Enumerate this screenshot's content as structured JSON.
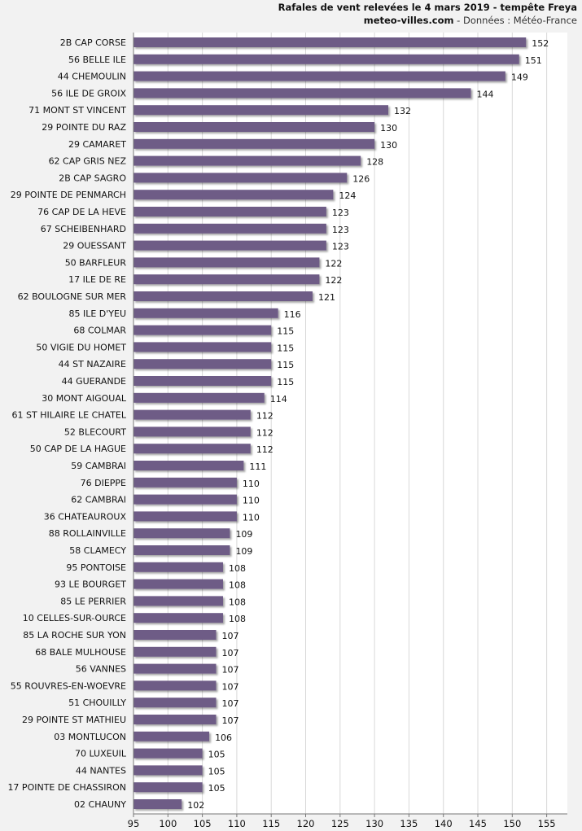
{
  "header": {
    "title": "Rafales de vent relevées le 4 mars 2019  - tempête Freya",
    "site": "meteo-villes.com",
    "source": " - Données : Météo-France"
  },
  "chart_data": {
    "type": "bar",
    "orientation": "horizontal",
    "title": "Rafales de vent relevées le 4 mars 2019  - tempête Freya",
    "xlim": [
      95,
      158
    ],
    "xticks": [
      95,
      100,
      105,
      110,
      115,
      120,
      125,
      130,
      135,
      140,
      145,
      150,
      155
    ],
    "grid": true,
    "bar_color": "#6e5c86",
    "categories": [
      "2B CAP CORSE",
      "56 BELLE ILE",
      "44 CHEMOULIN",
      "56 ILE DE GROIX",
      "71 MONT ST VINCENT",
      "29 POINTE DU RAZ",
      "29 CAMARET",
      "62 CAP GRIS NEZ",
      "2B CAP SAGRO",
      "29 POINTE DE PENMARCH",
      "76 CAP DE LA HEVE",
      "67 SCHEIBENHARD",
      "29 OUESSANT",
      "50 BARFLEUR",
      "17 ILE DE RE",
      "62 BOULOGNE SUR MER",
      "85 ILE D'YEU",
      "68 COLMAR",
      "50 VIGIE DU HOMET",
      "44 ST NAZAIRE",
      "44 GUERANDE",
      "30 MONT AIGOUAL",
      "61 ST HILAIRE LE CHATEL",
      "52 BLECOURT",
      "50 CAP DE LA HAGUE",
      "59 CAMBRAI",
      "76 DIEPPE",
      "62 CAMBRAI",
      "36 CHATEAUROUX",
      "88 ROLLAINVILLE",
      "58 CLAMECY",
      "95 PONTOISE",
      "93 LE BOURGET",
      "85 LE PERRIER",
      "10 CELLES-SUR-OURCE",
      "85 LA ROCHE SUR YON",
      "68 BALE MULHOUSE",
      "56 VANNES",
      "55 ROUVRES-EN-WOEVRE",
      "51 CHOUILLY",
      "29 POINTE ST MATHIEU",
      "03 MONTLUCON",
      "70 LUXEUIL",
      "44 NANTES",
      "17 POINTE DE CHASSIRON",
      "02 CHAUNY"
    ],
    "values": [
      152,
      151,
      149,
      144,
      132,
      130,
      130,
      128,
      126,
      124,
      123,
      123,
      123,
      122,
      122,
      121,
      116,
      115,
      115,
      115,
      115,
      114,
      112,
      112,
      112,
      111,
      110,
      110,
      110,
      109,
      109,
      108,
      108,
      108,
      108,
      107,
      107,
      107,
      107,
      107,
      107,
      106,
      105,
      105,
      105,
      102
    ]
  }
}
